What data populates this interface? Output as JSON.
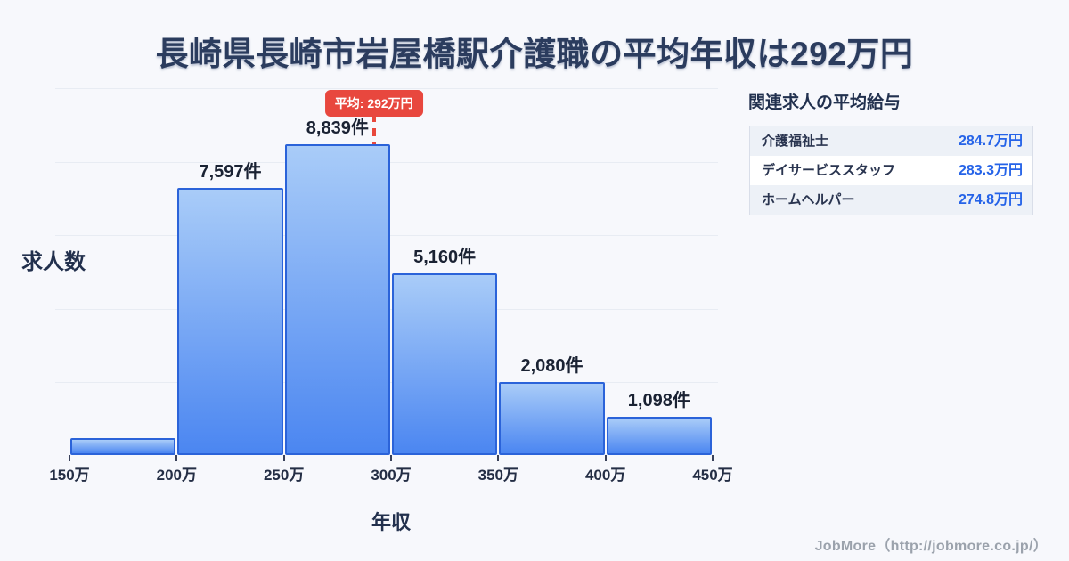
{
  "page": {
    "title": "長崎県長崎市岩屋橋駅介護職の平均年収は292万円",
    "background_color": "#f7f8fc"
  },
  "chart": {
    "y_axis_label": "求人数",
    "x_axis_label": "年収"
  },
  "chart_data": {
    "type": "bar",
    "subtype": "histogram",
    "title": "長崎県長崎市岩屋橋駅介護職の平均年収は292万円",
    "xlabel": "年収",
    "ylabel": "求人数",
    "x_tick_labels": [
      "150万",
      "200万",
      "250万",
      "300万",
      "350万",
      "400万",
      "450万"
    ],
    "x_range": [
      150,
      450
    ],
    "grid": true,
    "bins": [
      {
        "range": "150万-200万",
        "value": 480,
        "label": ""
      },
      {
        "range": "200万-250万",
        "value": 7597,
        "label": "7,597件"
      },
      {
        "range": "250万-300万",
        "value": 8839,
        "label": "8,839件"
      },
      {
        "range": "300万-350万",
        "value": 5160,
        "label": "5,160件"
      },
      {
        "range": "350万-400万",
        "value": 2080,
        "label": "2,080件"
      },
      {
        "range": "400万-450万",
        "value": 1098,
        "label": "1,098件"
      }
    ],
    "average_line": {
      "value": 292,
      "label": "平均: 292万円",
      "color": "#e8483c"
    },
    "colors": {
      "bar_gradient_top": "#a9ccf8",
      "bar_gradient_bottom": "#4b86f1",
      "bar_border": "#2b63d9",
      "gridline": "#e8ecf3"
    }
  },
  "related_jobs": {
    "title": "関連求人の平均給与",
    "salary_color": "#2563e8",
    "rows": [
      {
        "name": "介護福祉士",
        "salary": "284.7万円"
      },
      {
        "name": "デイサービススタッフ",
        "salary": "283.3万円"
      },
      {
        "name": "ホームヘルパー",
        "salary": "274.8万円"
      }
    ]
  },
  "footer": {
    "credit": "JobMore（http://jobmore.co.jp/）"
  }
}
